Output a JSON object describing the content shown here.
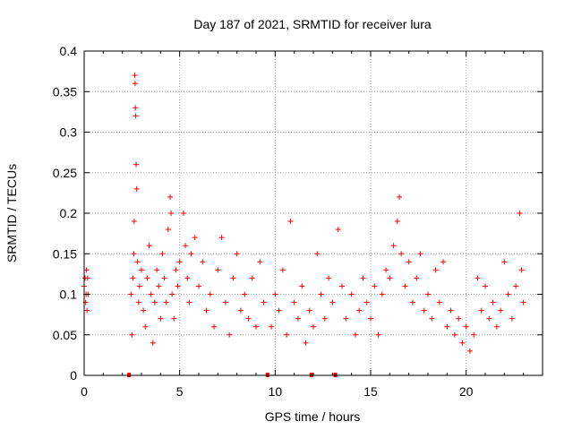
{
  "chart_data": {
    "type": "scatter",
    "title": "Day 187 of 2021, SRMTID for receiver lura",
    "xlabel": "GPS time / hours",
    "ylabel": "SRMTID / TECUs",
    "xlim": [
      0,
      24
    ],
    "ylim": [
      0,
      0.4
    ],
    "x_ticks": [
      0,
      5,
      10,
      15,
      20
    ],
    "x_tick_labels": [
      "0",
      "5",
      "10",
      "15",
      "20"
    ],
    "y_ticks": [
      0,
      0.05,
      0.1,
      0.15,
      0.2,
      0.25,
      0.3,
      0.35,
      0.4
    ],
    "y_tick_labels": [
      "0",
      "0.05",
      "0.1",
      "0.15",
      "0.2",
      "0.25",
      "0.3",
      "0.35",
      "0.4"
    ],
    "grid": true,
    "marker": "+",
    "colors": {
      "series": "#ff0000",
      "gap_marker": "#ff0000",
      "grid": "#a0a0a0",
      "axis": "#000000"
    },
    "gap_markers_x": [
      2.35,
      9.6,
      11.9,
      13.15
    ],
    "series": [
      {
        "name": "SRMTID",
        "points": [
          [
            0.0,
            0.11
          ],
          [
            0.05,
            0.12
          ],
          [
            0.08,
            0.09
          ],
          [
            0.1,
            0.1
          ],
          [
            0.12,
            0.13
          ],
          [
            0.15,
            0.08
          ],
          [
            0.18,
            0.12
          ],
          [
            0.2,
            0.1
          ],
          [
            2.45,
            0.1
          ],
          [
            2.5,
            0.05
          ],
          [
            2.55,
            0.12
          ],
          [
            2.6,
            0.15
          ],
          [
            2.62,
            0.19
          ],
          [
            2.65,
            0.37
          ],
          [
            2.67,
            0.36
          ],
          [
            2.68,
            0.33
          ],
          [
            2.7,
            0.32
          ],
          [
            2.72,
            0.26
          ],
          [
            2.75,
            0.23
          ],
          [
            2.8,
            0.14
          ],
          [
            2.85,
            0.09
          ],
          [
            2.9,
            0.11
          ],
          [
            3.0,
            0.13
          ],
          [
            3.1,
            0.08
          ],
          [
            3.2,
            0.06
          ],
          [
            3.3,
            0.12
          ],
          [
            3.4,
            0.16
          ],
          [
            3.5,
            0.1
          ],
          [
            3.6,
            0.04
          ],
          [
            3.7,
            0.09
          ],
          [
            3.8,
            0.13
          ],
          [
            3.9,
            0.11
          ],
          [
            4.0,
            0.07
          ],
          [
            4.1,
            0.15
          ],
          [
            4.2,
            0.12
          ],
          [
            4.3,
            0.09
          ],
          [
            4.4,
            0.18
          ],
          [
            4.5,
            0.22
          ],
          [
            4.55,
            0.2
          ],
          [
            4.6,
            0.1
          ],
          [
            4.7,
            0.07
          ],
          [
            4.8,
            0.13
          ],
          [
            4.9,
            0.11
          ],
          [
            5.0,
            0.14
          ],
          [
            5.2,
            0.2
          ],
          [
            5.3,
            0.16
          ],
          [
            5.4,
            0.12
          ],
          [
            5.5,
            0.09
          ],
          [
            5.6,
            0.15
          ],
          [
            5.8,
            0.17
          ],
          [
            6.0,
            0.11
          ],
          [
            6.2,
            0.14
          ],
          [
            6.4,
            0.08
          ],
          [
            6.6,
            0.1
          ],
          [
            6.8,
            0.06
          ],
          [
            7.0,
            0.13
          ],
          [
            7.2,
            0.17
          ],
          [
            7.4,
            0.09
          ],
          [
            7.6,
            0.05
          ],
          [
            7.8,
            0.12
          ],
          [
            8.0,
            0.15
          ],
          [
            8.2,
            0.08
          ],
          [
            8.4,
            0.1
          ],
          [
            8.6,
            0.07
          ],
          [
            8.8,
            0.12
          ],
          [
            9.0,
            0.06
          ],
          [
            9.2,
            0.14
          ],
          [
            9.4,
            0.09
          ],
          [
            9.8,
            0.06
          ],
          [
            10.0,
            0.1
          ],
          [
            10.2,
            0.08
          ],
          [
            10.4,
            0.13
          ],
          [
            10.6,
            0.05
          ],
          [
            10.8,
            0.19
          ],
          [
            11.0,
            0.09
          ],
          [
            11.2,
            0.07
          ],
          [
            11.4,
            0.11
          ],
          [
            11.6,
            0.04
          ],
          [
            11.8,
            0.08
          ],
          [
            12.0,
            0.06
          ],
          [
            12.2,
            0.15
          ],
          [
            12.4,
            0.1
          ],
          [
            12.6,
            0.07
          ],
          [
            12.8,
            0.12
          ],
          [
            13.0,
            0.09
          ],
          [
            13.3,
            0.18
          ],
          [
            13.5,
            0.11
          ],
          [
            13.7,
            0.07
          ],
          [
            14.0,
            0.1
          ],
          [
            14.2,
            0.05
          ],
          [
            14.4,
            0.08
          ],
          [
            14.6,
            0.12
          ],
          [
            14.8,
            0.09
          ],
          [
            15.0,
            0.07
          ],
          [
            15.2,
            0.11
          ],
          [
            15.4,
            0.05
          ],
          [
            15.6,
            0.1
          ],
          [
            15.8,
            0.13
          ],
          [
            16.0,
            0.12
          ],
          [
            16.2,
            0.16
          ],
          [
            16.4,
            0.19
          ],
          [
            16.5,
            0.22
          ],
          [
            16.6,
            0.15
          ],
          [
            16.8,
            0.11
          ],
          [
            17.0,
            0.14
          ],
          [
            17.2,
            0.09
          ],
          [
            17.4,
            0.12
          ],
          [
            17.6,
            0.15
          ],
          [
            17.8,
            0.08
          ],
          [
            18.0,
            0.1
          ],
          [
            18.2,
            0.07
          ],
          [
            18.4,
            0.13
          ],
          [
            18.6,
            0.09
          ],
          [
            18.8,
            0.14
          ],
          [
            19.0,
            0.06
          ],
          [
            19.2,
            0.08
          ],
          [
            19.4,
            0.05
          ],
          [
            19.6,
            0.07
          ],
          [
            19.8,
            0.04
          ],
          [
            20.0,
            0.06
          ],
          [
            20.2,
            0.03
          ],
          [
            20.4,
            0.05
          ],
          [
            20.6,
            0.12
          ],
          [
            20.8,
            0.08
          ],
          [
            21.0,
            0.11
          ],
          [
            21.2,
            0.07
          ],
          [
            21.4,
            0.09
          ],
          [
            21.6,
            0.06
          ],
          [
            21.8,
            0.08
          ],
          [
            22.0,
            0.14
          ],
          [
            22.2,
            0.1
          ],
          [
            22.4,
            0.07
          ],
          [
            22.6,
            0.11
          ],
          [
            22.8,
            0.2
          ],
          [
            22.9,
            0.13
          ],
          [
            23.0,
            0.09
          ]
        ]
      }
    ]
  }
}
